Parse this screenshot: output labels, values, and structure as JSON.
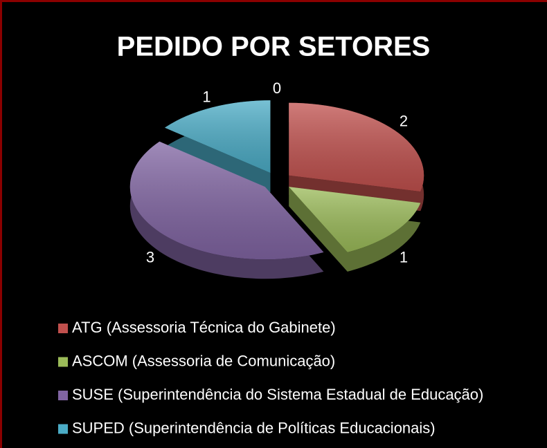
{
  "chart_data": {
    "type": "pie",
    "title": "PEDIDO POR SETORES",
    "categories": [
      "ATG (Assessoria Técnica do Gabinete)",
      "ASCOM (Assessoria de Comunicação)",
      "SUSE (Superintendência do Sistema Estadual de Educação)",
      "SUPED (Superintendência de Políticas Educacionais)",
      null
    ],
    "values": [
      2,
      1,
      3,
      1,
      0
    ],
    "colors": [
      "#c0504d",
      "#9bbb59",
      "#8064a2",
      "#4bacc6"
    ],
    "legend": "bottom"
  }
}
